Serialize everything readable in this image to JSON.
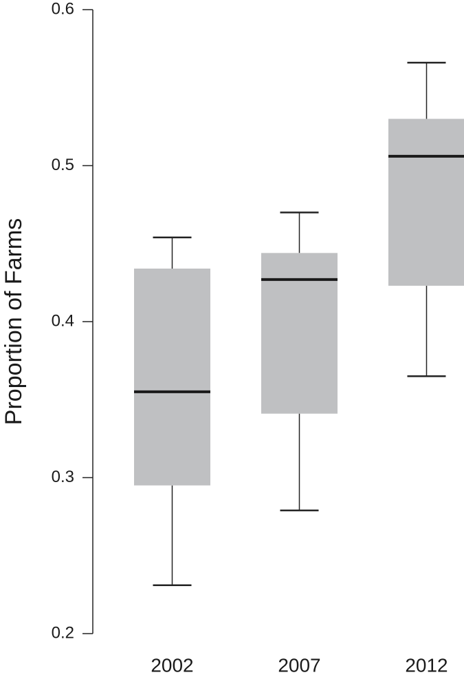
{
  "chart_data": {
    "type": "box",
    "ylabel": "Proportion of Farms",
    "categories": [
      "2002",
      "2007",
      "2012"
    ],
    "boxes": [
      {
        "whislo": 0.231,
        "q1": 0.295,
        "med": 0.355,
        "q3": 0.434,
        "whishi": 0.454
      },
      {
        "whislo": 0.279,
        "q1": 0.341,
        "med": 0.427,
        "q3": 0.444,
        "whishi": 0.47
      },
      {
        "whislo": 0.365,
        "q1": 0.423,
        "med": 0.506,
        "q3": 0.53,
        "whishi": 0.566
      }
    ],
    "color": "#bfc0c2",
    "ylim": [
      0.2,
      0.6
    ],
    "yticks": [
      0.2,
      0.3,
      0.4,
      0.5,
      0.6
    ]
  }
}
